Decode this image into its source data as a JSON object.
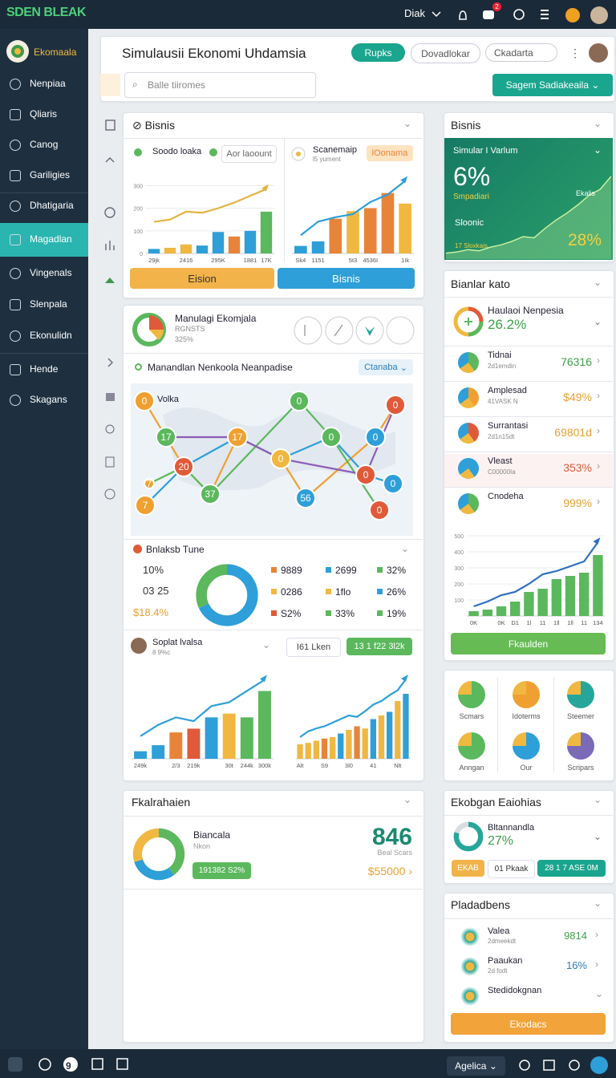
{
  "topbar": {
    "logo": "SDEN BLEAK",
    "user": "Diak",
    "badge": "2"
  },
  "sidebar": {
    "brand": "Ekomaala",
    "items": [
      "Nenpiaa",
      "Qliaris",
      "Canog",
      "Gariligies",
      "Dhatigaria",
      "Magadlan",
      "Vingenals",
      "Slenpala",
      "Ekonulidn",
      "Hende",
      "Skagans"
    ]
  },
  "header": {
    "title": "Simulausii Ekonomi Uhdamsia",
    "buttons": [
      "Rupks",
      "Dovadlokar",
      "Ckadarta"
    ],
    "search": "Balle tiiromes",
    "action": "Sagem Sadiakeaila"
  },
  "bisnis_card": {
    "title": "Bisnis",
    "legend": [
      "Soodo loaka",
      "Aor laoount"
    ],
    "right_title": "Scanemaip",
    "right_sub": "l5 yument",
    "right_badge": "lOonama",
    "buttons": [
      "Eision",
      "Bisnis"
    ]
  },
  "economy_card": {
    "title": "Manulagi Ekomjala",
    "sub": "RGNSTS",
    "pct": "325%",
    "map_title": "Manandlan Nenkoola Neanpadise",
    "map_select": "Ctanaba",
    "map_label": "Volka",
    "nodes": [
      "0",
      "0",
      "0",
      "17",
      "17",
      "0",
      "0",
      "20",
      "0",
      "0",
      "7",
      "0",
      "37",
      "56",
      "7",
      "0"
    ],
    "tune_title": "Bnlaksb Tune",
    "tune_left": [
      "10%",
      "03 25",
      "$18.4%"
    ],
    "tune_grid": [
      "9889",
      "2699",
      "32%",
      "0286",
      "1flo",
      "26%",
      "S2%",
      "33%",
      "19%"
    ],
    "person": "Soplat lvalsa",
    "person_sub": "8 9%c",
    "btn_left": "I61 Lken",
    "btn_right": "13 1 f22 3l2k"
  },
  "fkal_card": {
    "title": "Fkalrahaien",
    "name": "Biancala",
    "sub": "Nkon",
    "badge": "191382 S2%",
    "big": "846",
    "big_sub": "Beal Scars",
    "amount": "$55000"
  },
  "right_bisnis": {
    "title": "Bisnis",
    "label": "Simular I Varlum",
    "big": "6%",
    "sub": "Smpadiari",
    "side": "Ekalis",
    "bottom": "Sloonic",
    "bottom_sub": "17 Sloxkais",
    "pct": "28%"
  },
  "bianlar_card": {
    "title": "Bianlar kato",
    "head_name": "Haulaoi Nenpesia",
    "head_value": "26.2%",
    "rows": [
      {
        "name": "Tidnai",
        "sub": "2d1emdin",
        "value": "76316"
      },
      {
        "name": "Amplesad",
        "sub": "41VASK N",
        "value": "$49%"
      },
      {
        "name": "Surrantasi",
        "sub": "2d1n15dt",
        "value": "69801d"
      },
      {
        "name": "Vleast",
        "sub": "C00000Ia",
        "value": "353%"
      },
      {
        "name": "Cnodeha",
        "value": "999%"
      }
    ],
    "button": "Fkaulden"
  },
  "icons_card": {
    "labels": [
      "Scmars",
      "Idoterms",
      "Steemer",
      "Anngan",
      "Our",
      "Scripars"
    ]
  },
  "ekobgan_card": {
    "title": "Ekobgan Eaiohias",
    "name": "Bltannandla",
    "value": "27%",
    "chips": [
      "EKAB",
      "01 Pkaak",
      "28 1 7 ASE 0M"
    ]
  },
  "plada_card": {
    "title": "Pladadbens",
    "rows": [
      {
        "name": "Valea",
        "sub": "2dmeekdt",
        "value": "9814"
      },
      {
        "name": "Paaukan",
        "sub": "2d fodt",
        "value": "16%"
      },
      {
        "name": "Stedidokgnan"
      }
    ],
    "button": "Ekodacs"
  },
  "bottombar": {
    "count": "9",
    "select": "Agelica"
  },
  "chart_data": [
    {
      "type": "bar",
      "categories": [
        "29jk",
        null,
        "2416",
        null,
        "295K",
        null,
        "1881",
        "17K"
      ],
      "values": [
        20,
        25,
        40,
        35,
        95,
        75,
        100,
        185
      ],
      "colors": [
        "#2e9fd8",
        "#f0b841",
        "#f0b841",
        "#2e9fd8",
        "#2e9fd8",
        "#e8843a",
        "#2e9fd8",
        "#5bb85d"
      ],
      "line": {
        "values": [
          140,
          150,
          185,
          180,
          200,
          225,
          255,
          285
        ],
        "color": "#e3b341"
      },
      "ylim": [
        0,
        330
      ],
      "yticks": [
        0,
        100,
        200,
        300
      ]
    },
    {
      "type": "bar",
      "categories": [
        "Sk4",
        "1151",
        null,
        "5t3",
        "4536I",
        null,
        "1Ik"
      ],
      "values": [
        25,
        40,
        115,
        140,
        150,
        200,
        165
      ],
      "colors": [
        "#2e9fd8",
        "#2e9fd8",
        "#e8843a",
        "#f0b841",
        "#e8843a",
        "#e8843a",
        "#f0b841"
      ],
      "line": {
        "values": [
          60,
          105,
          120,
          130,
          170,
          195,
          240
        ],
        "color": "#2e9fd8"
      },
      "ylim": [
        0,
        260
      ]
    },
    {
      "type": "area",
      "values": [
        10,
        12,
        16,
        14,
        20,
        24,
        30,
        38,
        36,
        52,
        66,
        78,
        92,
        108,
        118,
        140
      ],
      "color": "#8fd18a",
      "ylim": [
        0,
        160
      ]
    },
    {
      "type": "donut",
      "values": [
        68,
        32
      ],
      "colors": [
        "#2e9fd8",
        "#5bb85d"
      ]
    },
    {
      "type": "bar",
      "categories": [
        "249k",
        null,
        "2/3",
        "219k",
        null,
        "30t",
        "244k",
        "300k"
      ],
      "values": [
        10,
        18,
        35,
        40,
        55,
        60,
        55,
        90
      ],
      "colors": [
        "#2e9fd8",
        "#2e9fd8",
        "#e8843a",
        "#e05a3a",
        "#2e9fd8",
        "#f0b841",
        "#5bb85d",
        "#5bb85d"
      ],
      "line": {
        "values": [
          30,
          45,
          55,
          50,
          70,
          75,
          90,
          105
        ],
        "color": "#2e9fd8"
      },
      "ylim": [
        0,
        115
      ]
    },
    {
      "type": "bar",
      "categories": [
        "Alt",
        null,
        null,
        "S9",
        null,
        null,
        "3l0",
        null,
        null,
        "41",
        null,
        null,
        "Nlt",
        null
      ],
      "values": [
        20,
        22,
        25,
        28,
        30,
        35,
        40,
        45,
        42,
        55,
        60,
        65,
        80,
        90
      ],
      "colors": [
        "#f0b841",
        "#f0b841",
        "#f0b841",
        "#e8843a",
        "#f0b841",
        "#2e9fd8",
        "#f0b841",
        "#e8843a",
        "#f0b841",
        "#2e9fd8",
        "#f0b841",
        "#2e9fd8",
        "#f0b841",
        "#2e9fd8"
      ],
      "line": {
        "values": [
          30,
          38,
          42,
          45,
          50,
          55,
          60,
          58,
          66,
          75,
          80,
          88,
          95,
          110
        ],
        "color": "#2e9fd8"
      },
      "ylim": [
        0,
        120
      ]
    },
    {
      "type": "bar",
      "categories": [
        "0K",
        null,
        "0K",
        "D1",
        "1l",
        "11",
        "1ll",
        "1ll",
        "11",
        "134"
      ],
      "values": [
        30,
        40,
        60,
        90,
        150,
        170,
        230,
        250,
        270,
        380
      ],
      "colors": [
        "#5bb85d",
        "#5bb85d",
        "#5bb85d",
        "#5bb85d",
        "#5bb85d",
        "#5bb85d",
        "#5bb85d",
        "#5bb85d",
        "#5bb85d",
        "#5bb85d"
      ],
      "line": {
        "values": [
          60,
          90,
          130,
          150,
          200,
          260,
          280,
          310,
          340,
          460
        ],
        "color": "#2e6fc0"
      },
      "ylim": [
        0,
        500
      ],
      "yticks": [
        100,
        200,
        300,
        400,
        500
      ]
    },
    {
      "type": "donut",
      "values": [
        40,
        30,
        30
      ],
      "colors": [
        "#5bb85d",
        "#2e9fd8",
        "#f0b841"
      ]
    },
    {
      "type": "donut",
      "values": [
        80,
        20
      ],
      "colors": [
        "#26a69a",
        "#d8dde2"
      ]
    }
  ]
}
